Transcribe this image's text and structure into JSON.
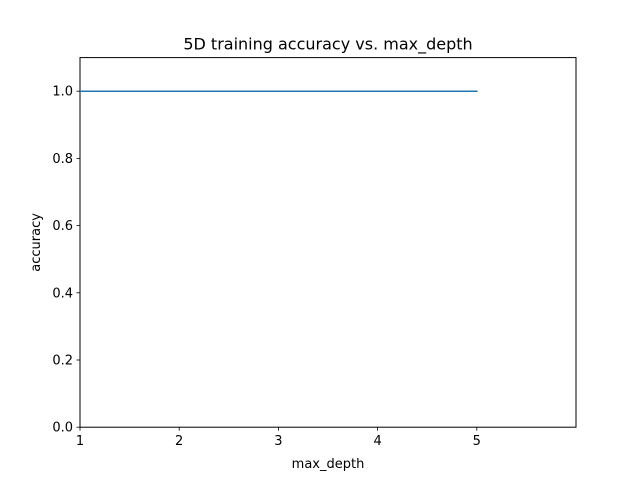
{
  "chart_data": {
    "type": "line",
    "title": "5D training accuracy vs. max_depth",
    "xlabel": "max_depth",
    "ylabel": "accuracy",
    "x": [
      1,
      2,
      3,
      4,
      5
    ],
    "series": [
      {
        "values": [
          1.0,
          1.0,
          1.0,
          1.0,
          1.0
        ],
        "color": "#1f77b4"
      }
    ],
    "xlim": [
      1,
      6
    ],
    "ylim": [
      0,
      1.1
    ],
    "xticks": [
      1,
      2,
      3,
      4,
      5
    ],
    "xtick_labels": [
      "1",
      "2",
      "3",
      "4",
      "5"
    ],
    "yticks": [
      0.0,
      0.2,
      0.4,
      0.6,
      0.8,
      1.0
    ],
    "ytick_labels": [
      "0.0",
      "0.2",
      "0.4",
      "0.6",
      "0.8",
      "1.0"
    ],
    "grid": false,
    "legend": "none"
  }
}
